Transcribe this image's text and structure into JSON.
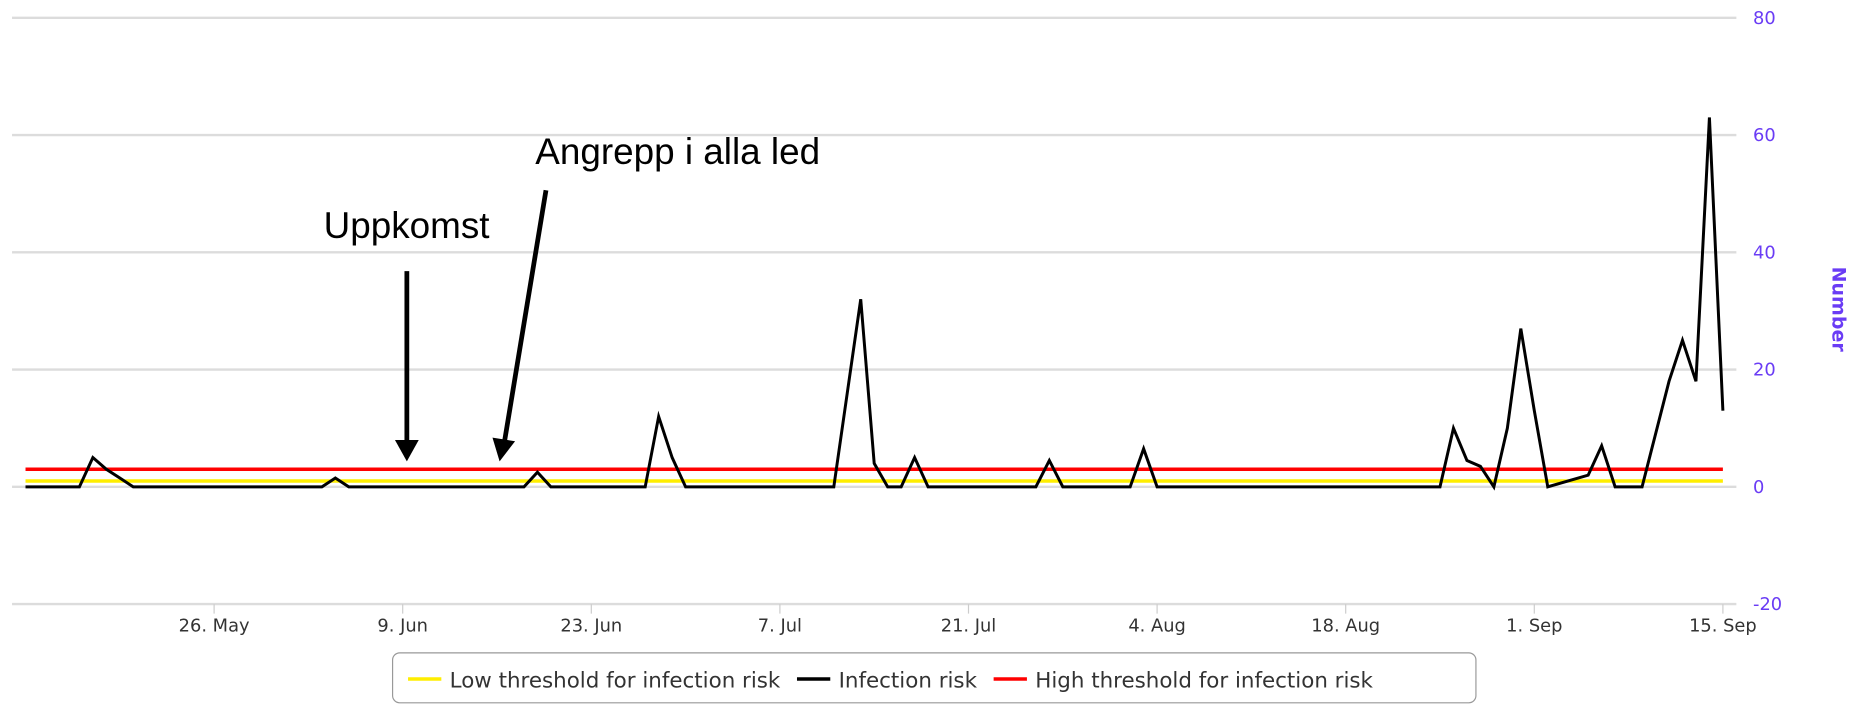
{
  "chart_data": {
    "type": "line",
    "y_label": "Number",
    "annotations": [
      "Uppkomst",
      "Angrepp  i alla led"
    ],
    "xlim": [
      "05-11",
      "09-16"
    ],
    "xticks": [
      {
        "value": "05-26",
        "label": "26. May"
      },
      {
        "value": "06-09",
        "label": "9. Jun"
      },
      {
        "value": "06-23",
        "label": "23. Jun"
      },
      {
        "value": "07-07",
        "label": "7. Jul"
      },
      {
        "value": "07-21",
        "label": "21. Jul"
      },
      {
        "value": "08-04",
        "label": "4. Aug"
      },
      {
        "value": "08-18",
        "label": "18. Aug"
      },
      {
        "value": "09-01",
        "label": "1. Sep"
      },
      {
        "value": "09-15",
        "label": "15. Sep"
      }
    ],
    "ylim": [
      -20,
      80
    ],
    "yticks": [
      -20,
      0,
      20,
      40,
      60,
      80
    ],
    "grid": true,
    "legend": "bottom",
    "series": [
      {
        "name": "Low threshold for infection risk",
        "color": "#ffee00",
        "x": [
          "05-12",
          "09-15"
        ],
        "values": [
          1,
          1
        ]
      },
      {
        "name": "Infection risk",
        "color": "#000000",
        "x": [
          "05-12",
          "05-16",
          "05-17",
          "05-18",
          "05-19",
          "05-20",
          "06-03",
          "06-04",
          "06-05",
          "06-18",
          "06-19",
          "06-20",
          "06-27",
          "06-28",
          "06-29",
          "06-30",
          "07-11",
          "07-12",
          "07-13",
          "07-14",
          "07-15",
          "07-16",
          "07-17",
          "07-18",
          "07-26",
          "07-27",
          "07-28",
          "08-02",
          "08-03",
          "08-04",
          "08-25",
          "08-26",
          "08-27",
          "08-28",
          "08-29",
          "08-30",
          "08-31",
          "09-01",
          "09-02",
          "09-05",
          "09-06",
          "09-07",
          "09-09",
          "09-10",
          "09-11",
          "09-12",
          "09-13",
          "09-14",
          "09-15"
        ],
        "values": [
          0,
          0,
          5,
          3,
          1.5,
          0,
          0,
          1.5,
          0,
          0,
          2.5,
          0,
          0,
          12,
          5,
          0,
          0,
          16,
          32,
          4,
          0,
          0,
          5,
          0,
          0,
          4.5,
          0,
          0,
          6.5,
          0,
          0,
          10,
          4.5,
          3.5,
          0,
          10,
          27,
          13,
          0,
          2,
          7,
          0,
          0,
          9,
          18,
          25,
          18,
          63,
          13
        ]
      },
      {
        "name": "High threshold for infection risk",
        "color": "#ff0000",
        "x": [
          "05-12",
          "09-15"
        ],
        "values": [
          3,
          3
        ]
      }
    ]
  }
}
